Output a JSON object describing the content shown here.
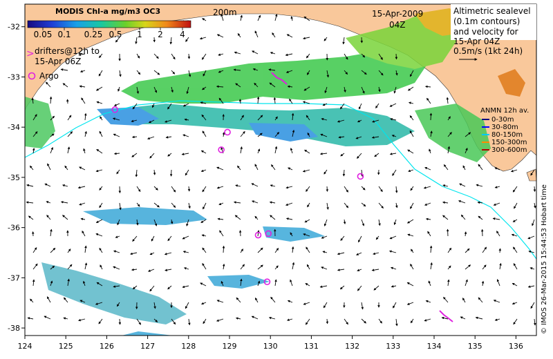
{
  "header": {
    "colorbar_title": "MODIS Chl-a mg/m3 OC3",
    "colorbar_ticks": [
      "0.05",
      "0.1",
      "0.25",
      "0.5",
      "1",
      "2",
      "4"
    ],
    "isobath_label": "200m",
    "date": "15-Apr-2009",
    "time": "04Z"
  },
  "legend_drifters": {
    "line1": "drifters@12h to",
    "line2": "15-Apr 06Z",
    "argo_label": "Argo"
  },
  "altimetry_box": {
    "lines": [
      "Altimetric sealevel",
      "(0.1m contours)",
      "and velocity for",
      "15-Apr 04Z",
      "0.5m/s (1kt 24h)"
    ]
  },
  "anmn_legend": {
    "title": "ANMN 12h av.",
    "items": [
      {
        "label": "0-30m",
        "color": "#000080"
      },
      {
        "label": "30-80m",
        "color": "#0000ff"
      },
      {
        "label": "80-150m",
        "color": "#00c8ff"
      },
      {
        "label": "150-300m",
        "color": "#ff8c00"
      },
      {
        "label": "300-600m",
        "color": "#b00000"
      }
    ]
  },
  "axes": {
    "x_ticks": [
      "124",
      "125",
      "126",
      "127",
      "128",
      "129",
      "130",
      "131",
      "132",
      "133",
      "134",
      "135",
      "136"
    ],
    "y_ticks": [
      "-32",
      "-33",
      "-34",
      "-35",
      "-36",
      "-37",
      "-38"
    ]
  },
  "credit": "© IMOS 26-Mar-2015 15:44:53 Hobart time",
  "colors": {
    "land": "#f9c89b",
    "ocean": "#ffffff",
    "argo": "#e020e0",
    "isobath": "#00e5ee"
  },
  "argo_floats": [
    {
      "lon": 126.2,
      "lat": -33.65
    },
    {
      "lon": 128.95,
      "lat": -34.1
    },
    {
      "lon": 128.8,
      "lat": -34.45
    },
    {
      "lon": 132.2,
      "lat": -34.98
    },
    {
      "lon": 129.7,
      "lat": -36.15
    },
    {
      "lon": 129.95,
      "lat": -36.12
    },
    {
      "lon": 129.92,
      "lat": -37.08
    }
  ]
}
